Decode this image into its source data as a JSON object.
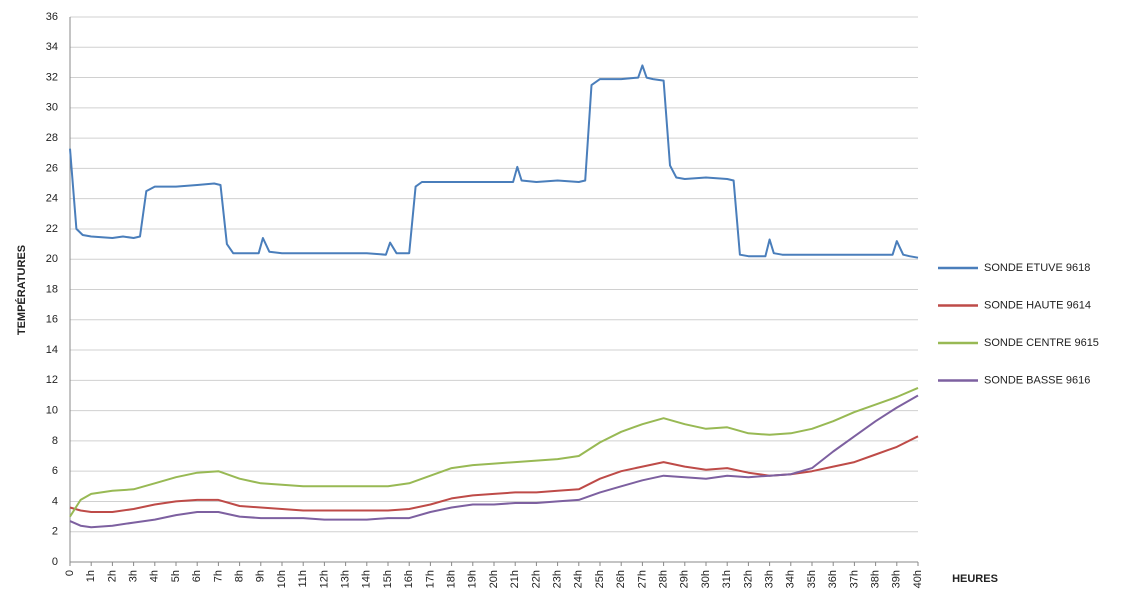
{
  "chart_data": {
    "type": "line",
    "ylabel": "TEMPÉRATURES",
    "xlabel": "HEURES",
    "xlim": [
      0,
      40
    ],
    "ylim": [
      0,
      36
    ],
    "yticks": [
      0,
      2,
      4,
      6,
      8,
      10,
      12,
      14,
      16,
      18,
      20,
      22,
      24,
      26,
      28,
      30,
      32,
      34,
      36
    ],
    "xticks": [
      0,
      {
        "value": 1,
        "label": "1h"
      },
      {
        "value": 2,
        "label": "2h"
      },
      {
        "value": 3,
        "label": "3h"
      },
      {
        "value": 4,
        "label": "4h"
      },
      {
        "value": 5,
        "label": "5h"
      },
      {
        "value": 6,
        "label": "6h"
      },
      {
        "value": 7,
        "label": "7h"
      },
      {
        "value": 8,
        "label": "8h"
      },
      {
        "value": 9,
        "label": "9h"
      },
      {
        "value": 10,
        "label": "10h"
      },
      {
        "value": 11,
        "label": "11h"
      },
      {
        "value": 12,
        "label": "12h"
      },
      {
        "value": 13,
        "label": "13h"
      },
      {
        "value": 14,
        "label": "14h"
      },
      {
        "value": 15,
        "label": "15h"
      },
      {
        "value": 16,
        "label": "16h"
      },
      {
        "value": 17,
        "label": "17h"
      },
      {
        "value": 18,
        "label": "18h"
      },
      {
        "value": 19,
        "label": "19h"
      },
      {
        "value": 20,
        "label": "20h"
      },
      {
        "value": 21,
        "label": "21h"
      },
      {
        "value": 22,
        "label": "22h"
      },
      {
        "value": 23,
        "label": "23h"
      },
      {
        "value": 24,
        "label": "24h"
      },
      {
        "value": 25,
        "label": "25h"
      },
      {
        "value": 26,
        "label": "26h"
      },
      {
        "value": 27,
        "label": "27h"
      },
      {
        "value": 28,
        "label": "28h"
      },
      {
        "value": 29,
        "label": "29h"
      },
      {
        "value": 30,
        "label": "30h"
      },
      {
        "value": 31,
        "label": "31h"
      },
      {
        "value": 32,
        "label": "32h"
      },
      {
        "value": 33,
        "label": "33h"
      },
      {
        "value": 34,
        "label": "34h"
      },
      {
        "value": 35,
        "label": "35h"
      },
      {
        "value": 36,
        "label": "36h"
      },
      {
        "value": 37,
        "label": "37h"
      },
      {
        "value": 38,
        "label": "38h"
      },
      {
        "value": 39,
        "label": "39h"
      },
      {
        "value": 40,
        "label": "40h"
      }
    ],
    "grid": true,
    "legend": "right",
    "series": [
      {
        "name": "SONDE ETUVE 9618",
        "color": "#4a7ebb",
        "x": [
          0,
          0.3,
          0.6,
          1,
          2,
          2.5,
          3,
          3.3,
          3.6,
          4,
          5,
          6,
          6.8,
          7.1,
          7.4,
          7.7,
          8.5,
          8.9,
          9.1,
          9.4,
          10,
          12,
          14,
          14.9,
          15.1,
          15.4,
          16,
          16.3,
          16.6,
          17,
          18,
          19,
          20,
          20.9,
          21.1,
          21.3,
          22,
          23,
          24,
          24.3,
          24.6,
          25,
          26,
          26.8,
          27,
          27.2,
          27.5,
          28,
          28.3,
          28.6,
          29,
          30,
          31,
          31.3,
          31.6,
          32,
          32.8,
          33,
          33.2,
          33.6,
          34,
          35,
          36,
          37,
          38,
          38.8,
          39,
          39.3,
          39.6,
          40
        ],
        "values": [
          27.3,
          22,
          21.6,
          21.5,
          21.4,
          21.5,
          21.4,
          21.5,
          24.5,
          24.8,
          24.8,
          24.9,
          25.0,
          24.9,
          21,
          20.4,
          20.4,
          20.4,
          21.4,
          20.5,
          20.4,
          20.4,
          20.4,
          20.3,
          21.1,
          20.4,
          20.4,
          24.8,
          25.1,
          25.1,
          25.1,
          25.1,
          25.1,
          25.1,
          26.1,
          25.2,
          25.1,
          25.2,
          25.1,
          25.2,
          31.5,
          31.9,
          31.9,
          32.0,
          32.8,
          32.0,
          31.9,
          31.8,
          26.2,
          25.4,
          25.3,
          25.4,
          25.3,
          25.2,
          20.3,
          20.2,
          20.2,
          21.3,
          20.4,
          20.3,
          20.3,
          20.3,
          20.3,
          20.3,
          20.3,
          20.3,
          21.2,
          20.3,
          20.2,
          20.1
        ]
      },
      {
        "name": "SONDE HAUTE 9614",
        "color": "#be4b48",
        "x": [
          0,
          0.5,
          1,
          2,
          3,
          4,
          5,
          6,
          7,
          8,
          9,
          10,
          11,
          12,
          13,
          14,
          15,
          16,
          17,
          18,
          19,
          20,
          21,
          22,
          23,
          24,
          25,
          26,
          27,
          28,
          29,
          30,
          31,
          32,
          33,
          34,
          35,
          36,
          37,
          38,
          39,
          40
        ],
        "values": [
          3.6,
          3.4,
          3.3,
          3.3,
          3.5,
          3.8,
          4.0,
          4.1,
          4.1,
          3.7,
          3.6,
          3.5,
          3.4,
          3.4,
          3.4,
          3.4,
          3.4,
          3.5,
          3.8,
          4.2,
          4.4,
          4.5,
          4.6,
          4.6,
          4.7,
          4.8,
          5.5,
          6.0,
          6.3,
          6.6,
          6.3,
          6.1,
          6.2,
          5.9,
          5.7,
          5.8,
          6.0,
          6.3,
          6.6,
          7.1,
          7.6,
          8.3
        ]
      },
      {
        "name": "SONDE CENTRE 9615",
        "color": "#98b954",
        "x": [
          0,
          0.5,
          1,
          2,
          3,
          4,
          5,
          6,
          7,
          8,
          9,
          10,
          11,
          12,
          13,
          14,
          15,
          16,
          17,
          18,
          19,
          20,
          21,
          22,
          23,
          24,
          25,
          26,
          27,
          28,
          29,
          30,
          31,
          32,
          33,
          34,
          35,
          36,
          37,
          38,
          39,
          40
        ],
        "values": [
          3.0,
          4.1,
          4.5,
          4.7,
          4.8,
          5.2,
          5.6,
          5.9,
          6.0,
          5.5,
          5.2,
          5.1,
          5.0,
          5.0,
          5.0,
          5.0,
          5.0,
          5.2,
          5.7,
          6.2,
          6.4,
          6.5,
          6.6,
          6.7,
          6.8,
          7.0,
          7.9,
          8.6,
          9.1,
          9.5,
          9.1,
          8.8,
          8.9,
          8.5,
          8.4,
          8.5,
          8.8,
          9.3,
          9.9,
          10.4,
          10.9,
          11.5
        ]
      },
      {
        "name": "SONDE BASSE 9616",
        "color": "#7d60a0",
        "x": [
          0,
          0.5,
          1,
          2,
          3,
          4,
          5,
          6,
          7,
          8,
          9,
          10,
          11,
          12,
          13,
          14,
          15,
          16,
          17,
          18,
          19,
          20,
          21,
          22,
          23,
          24,
          25,
          26,
          27,
          28,
          29,
          30,
          31,
          32,
          33,
          34,
          35,
          36,
          37,
          38,
          39,
          40
        ],
        "values": [
          2.7,
          2.4,
          2.3,
          2.4,
          2.6,
          2.8,
          3.1,
          3.3,
          3.3,
          3.0,
          2.9,
          2.9,
          2.9,
          2.8,
          2.8,
          2.8,
          2.9,
          2.9,
          3.3,
          3.6,
          3.8,
          3.8,
          3.9,
          3.9,
          4.0,
          4.1,
          4.6,
          5.0,
          5.4,
          5.7,
          5.6,
          5.5,
          5.7,
          5.6,
          5.7,
          5.8,
          6.2,
          7.3,
          8.3,
          9.3,
          10.2,
          11.0
        ]
      }
    ]
  }
}
